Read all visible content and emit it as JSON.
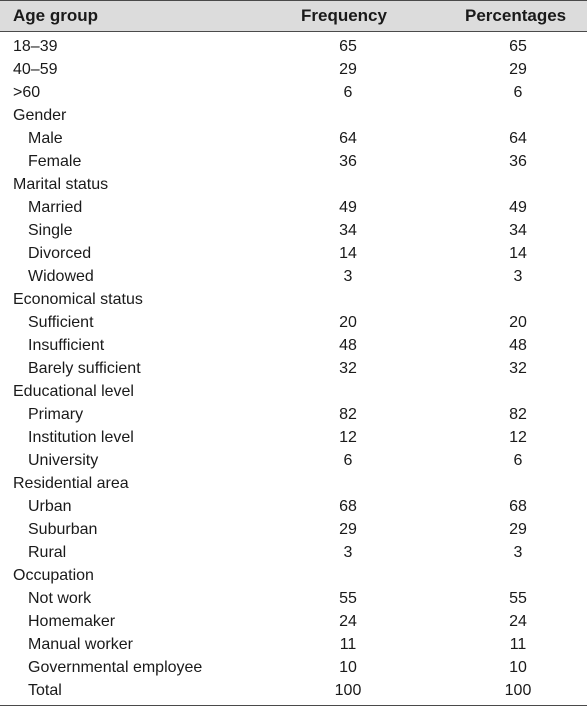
{
  "header": {
    "label": "Age group",
    "frequency": "Frequency",
    "percentages": "Percentages"
  },
  "rows": [
    {
      "label": "18–39",
      "frequency": "65",
      "percentage": "65",
      "indent": false
    },
    {
      "label": "40–59",
      "frequency": "29",
      "percentage": "29",
      "indent": false
    },
    {
      "label": ">60",
      "frequency": "6",
      "percentage": "6",
      "indent": false
    },
    {
      "label": "Gender",
      "frequency": "",
      "percentage": "",
      "indent": false
    },
    {
      "label": "Male",
      "frequency": "64",
      "percentage": "64",
      "indent": true
    },
    {
      "label": "Female",
      "frequency": "36",
      "percentage": "36",
      "indent": true
    },
    {
      "label": "Marital status",
      "frequency": "",
      "percentage": "",
      "indent": false
    },
    {
      "label": "Married",
      "frequency": "49",
      "percentage": "49",
      "indent": true
    },
    {
      "label": "Single",
      "frequency": "34",
      "percentage": "34",
      "indent": true
    },
    {
      "label": "Divorced",
      "frequency": "14",
      "percentage": "14",
      "indent": true
    },
    {
      "label": "Widowed",
      "frequency": "3",
      "percentage": "3",
      "indent": true
    },
    {
      "label": "Economical status",
      "frequency": "",
      "percentage": "",
      "indent": false
    },
    {
      "label": "Sufficient",
      "frequency": "20",
      "percentage": "20",
      "indent": true
    },
    {
      "label": "Insufficient",
      "frequency": "48",
      "percentage": "48",
      "indent": true
    },
    {
      "label": "Barely sufficient",
      "frequency": "32",
      "percentage": "32",
      "indent": true
    },
    {
      "label": "Educational level",
      "frequency": "",
      "percentage": "",
      "indent": false
    },
    {
      "label": "Primary",
      "frequency": "82",
      "percentage": "82",
      "indent": true
    },
    {
      "label": "Institution level",
      "frequency": "12",
      "percentage": "12",
      "indent": true
    },
    {
      "label": "University",
      "frequency": "6",
      "percentage": "6",
      "indent": true
    },
    {
      "label": "Residential area",
      "frequency": "",
      "percentage": "",
      "indent": false
    },
    {
      "label": "Urban",
      "frequency": "68",
      "percentage": "68",
      "indent": true
    },
    {
      "label": "Suburban",
      "frequency": "29",
      "percentage": "29",
      "indent": true
    },
    {
      "label": "Rural",
      "frequency": "3",
      "percentage": "3",
      "indent": true
    },
    {
      "label": "Occupation",
      "frequency": "",
      "percentage": "",
      "indent": false
    },
    {
      "label": "Not work",
      "frequency": "55",
      "percentage": "55",
      "indent": true
    },
    {
      "label": "Homemaker",
      "frequency": "24",
      "percentage": "24",
      "indent": true
    },
    {
      "label": "Manual worker",
      "frequency": "11",
      "percentage": "11",
      "indent": true
    },
    {
      "label": "Governmental employee",
      "frequency": "10",
      "percentage": "10",
      "indent": true
    },
    {
      "label": "Total",
      "frequency": "100",
      "percentage": "100",
      "indent": true
    }
  ]
}
